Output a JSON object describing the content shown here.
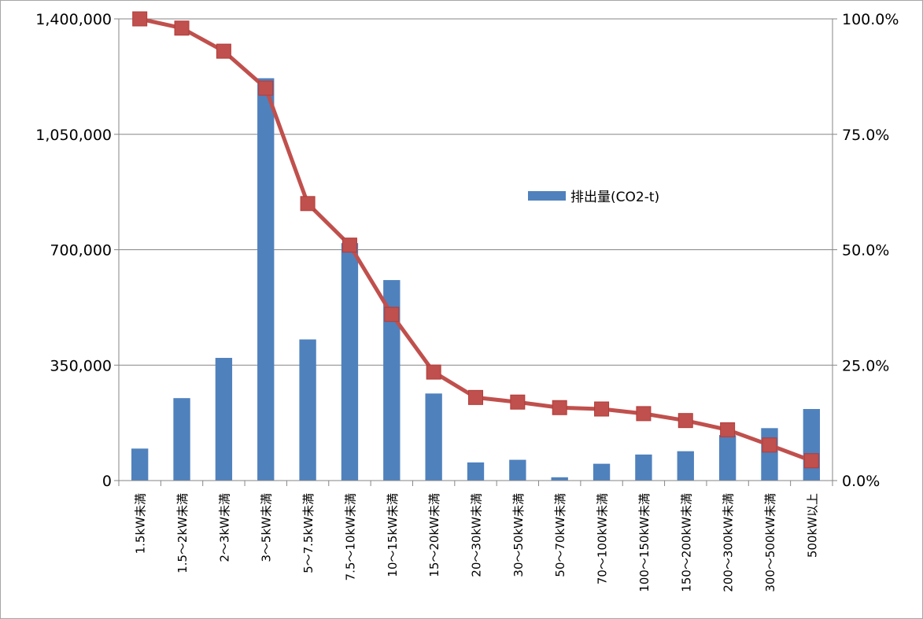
{
  "chart_data": {
    "type": "bar",
    "categories": [
      "1.5kW未満",
      "1.5〜2kW未満",
      "2〜3kW未満",
      "3〜5kW未満",
      "5〜7.5kW未満",
      "7.5〜10kW未満",
      "10〜15kW未満",
      "15〜20kW未満",
      "20〜30kW未満",
      "30〜50kW未満",
      "50〜70kW未満",
      "70〜100kW未満",
      "100〜150kW未満",
      "150〜200kW未満",
      "200〜300kW未満",
      "300〜500kW未満",
      "500kW以上"
    ],
    "series": [
      {
        "name": "排出量(CO2-t)",
        "type": "bar",
        "axis": "left",
        "color": "#4f81bd",
        "values": [
          97000,
          250000,
          372000,
          1220000,
          428000,
          720000,
          608000,
          264000,
          55000,
          63000,
          10000,
          51000,
          79000,
          89000,
          138000,
          159000,
          217000
        ]
      },
      {
        "type": "line",
        "axis": "right",
        "color": "#c0504d",
        "marker": "square",
        "values": [
          100.0,
          98.0,
          93.0,
          85.0,
          60.0,
          51.0,
          36.0,
          23.5,
          18.0,
          17.0,
          15.8,
          15.5,
          14.5,
          13.0,
          11.0,
          7.7,
          4.3
        ]
      }
    ],
    "yaxis_left": {
      "min": 0,
      "max": 1400000,
      "ticks": [
        "0",
        "350,000",
        "700,000",
        "1,050,000",
        "1,400,000"
      ]
    },
    "yaxis_right": {
      "min": 0,
      "max": 100,
      "ticks": [
        "0.0%",
        "25.0%",
        "50.0%",
        "75.0%",
        "100.0%"
      ]
    },
    "grid": true,
    "legend": {
      "position": "inside-right",
      "label": "排出量(CO2-t)"
    }
  }
}
